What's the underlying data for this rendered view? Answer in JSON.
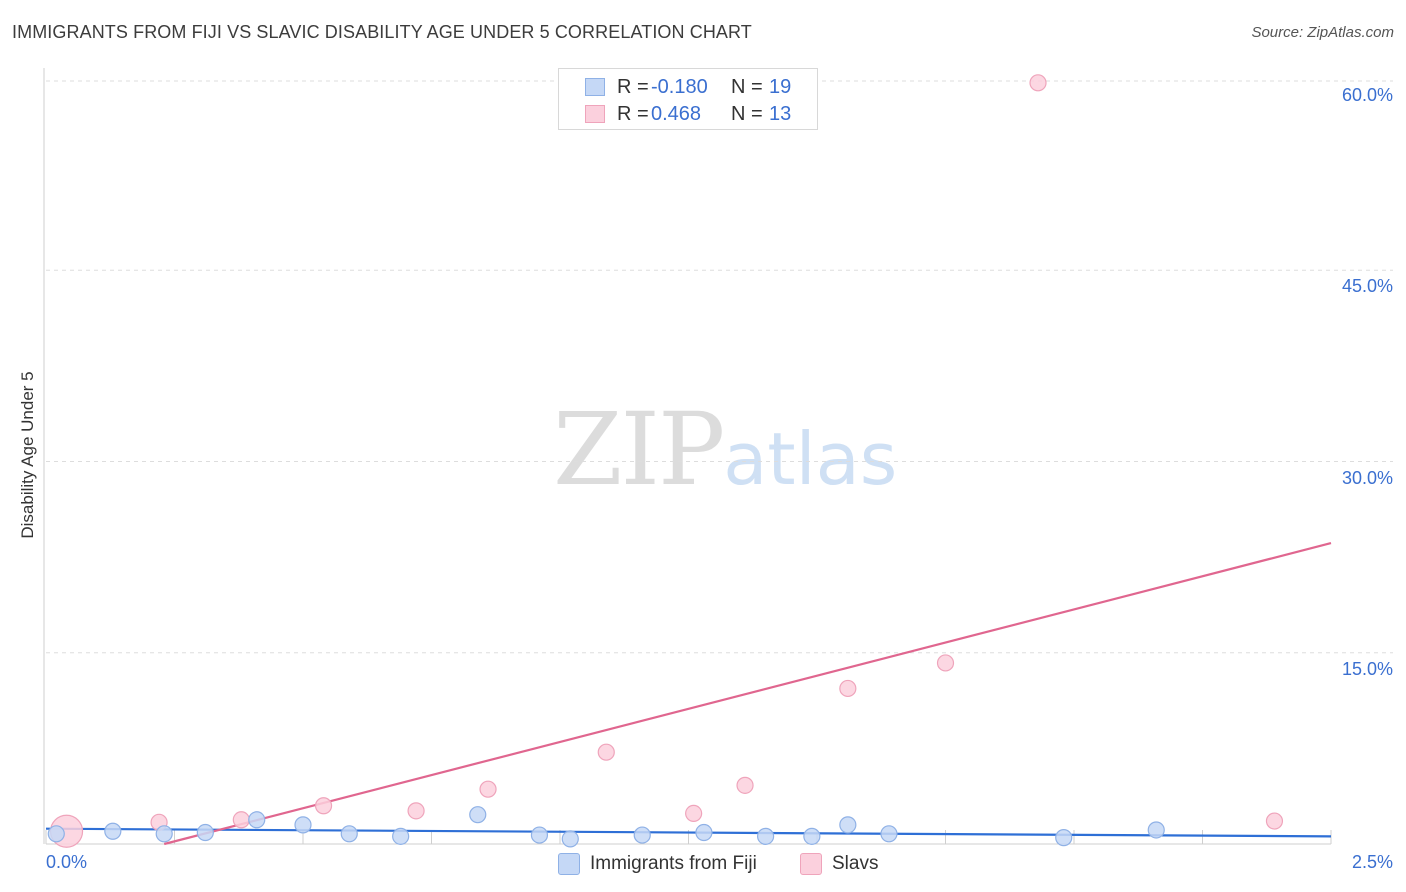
{
  "header": {
    "title": "IMMIGRANTS FROM FIJI VS SLAVIC DISABILITY AGE UNDER 5 CORRELATION CHART",
    "source": "Source: ZipAtlas.com"
  },
  "watermark": {
    "zip": "ZIP",
    "atlas": "atlas"
  },
  "legend": {
    "rows": [
      {
        "r_label": "R =",
        "r_value": "-0.180",
        "n_label": "N =",
        "n_value": "19",
        "color": "#a9c4ee"
      },
      {
        "r_label": "R =",
        "r_value": "0.468",
        "n_label": "N =",
        "n_value": "13",
        "color": "#f7b8cb"
      }
    ]
  },
  "bottom_legend": {
    "fiji": "Immigrants from Fiji",
    "slavs": "Slavs"
  },
  "colors": {
    "fiji_fill": "#c5d8f6",
    "fiji_stroke": "#8fb1e6",
    "fiji_line": "#2e6fd6",
    "slavs_fill": "#fbd0dd",
    "slavs_stroke": "#efa4bb",
    "slavs_line": "#e0668f",
    "grid": "#dddddd",
    "tick_text": "#3a6fd0"
  },
  "chart_data": {
    "type": "scatter",
    "title": "IMMIGRANTS FROM FIJI VS SLAVIC DISABILITY AGE UNDER 5 CORRELATION CHART",
    "xlabel": "",
    "ylabel": "Disability Age Under 5",
    "xlim": [
      0,
      2.5
    ],
    "ylim": [
      0,
      60
    ],
    "x_tick_labels": [
      "0.0%",
      "2.5%"
    ],
    "y_ticks": [
      15,
      30,
      45,
      60
    ],
    "y_tick_labels": [
      "15.0%",
      "30.0%",
      "45.0%",
      "60.0%"
    ],
    "grid": true,
    "series": [
      {
        "name": "Immigrants from Fiji",
        "points": [
          [
            0.02,
            0.8
          ],
          [
            0.13,
            1.0
          ],
          [
            0.23,
            0.8
          ],
          [
            0.31,
            0.9
          ],
          [
            0.41,
            1.9
          ],
          [
            0.5,
            1.5
          ],
          [
            0.59,
            0.8
          ],
          [
            0.69,
            0.6
          ],
          [
            0.84,
            2.3
          ],
          [
            0.96,
            0.7
          ],
          [
            1.02,
            0.4
          ],
          [
            1.16,
            0.7
          ],
          [
            1.28,
            0.9
          ],
          [
            1.4,
            0.6
          ],
          [
            1.49,
            0.6
          ],
          [
            1.56,
            1.5
          ],
          [
            1.64,
            0.8
          ],
          [
            1.98,
            0.5
          ],
          [
            2.16,
            1.1
          ]
        ],
        "trend": {
          "x": [
            0,
            2.5
          ],
          "y": [
            1.2,
            0.6
          ]
        }
      },
      {
        "name": "Slavs",
        "points": [
          [
            0.04,
            1.0
          ],
          [
            0.22,
            1.7
          ],
          [
            0.38,
            1.9
          ],
          [
            0.54,
            3.0
          ],
          [
            0.72,
            2.6
          ],
          [
            0.86,
            4.3
          ],
          [
            1.09,
            7.2
          ],
          [
            1.26,
            2.4
          ],
          [
            1.36,
            4.6
          ],
          [
            1.56,
            12.2
          ],
          [
            1.75,
            14.2
          ],
          [
            1.93,
            59.7
          ],
          [
            2.39,
            1.8
          ]
        ],
        "trend": {
          "x": [
            0.23,
            2.5
          ],
          "y": [
            0,
            23.6
          ]
        }
      }
    ]
  }
}
